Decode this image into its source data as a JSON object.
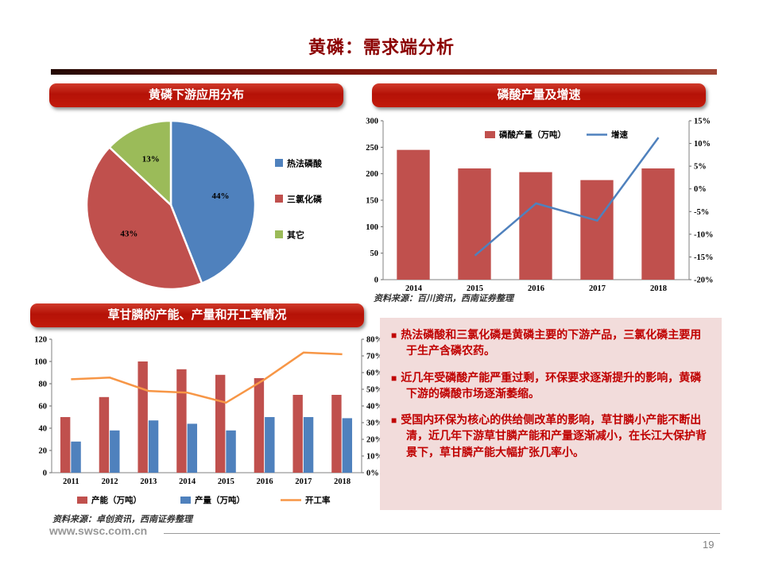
{
  "page": {
    "title": "黄磷：需求端分析",
    "footer_url": "www.swsc.com.cn",
    "page_number": "19"
  },
  "panels": {
    "pie": {
      "header": "黄磷下游应用分布"
    },
    "acid": {
      "header": "磷酸产量及增速",
      "source": "资料来源：百川资讯，西南证券整理"
    },
    "glyphosate": {
      "header": "草甘膦的产能、产量和开工率情况",
      "source": "资料来源：卓创资讯，西南证券整理"
    },
    "notes": {
      "bullet": "■",
      "items": [
        "热法磷酸和三氯化磷是黄磷主要的下游产品，三氯化磷主要用于生产含磷农药。",
        "近几年受磷酸产能严重过剩，环保要求逐渐提升的影响，黄磷下游的磷酸市场逐渐萎缩。",
        "受国内环保为核心的供给侧改革的影响，草甘膦小产能不断出清，近几年下游草甘膦产能和产量逐渐减小，在长江大保护背景下，草甘膦产能大幅扩张几率小。"
      ]
    }
  },
  "chart_data": [
    {
      "id": "pie-downstream",
      "type": "pie",
      "title": "黄磷下游应用分布",
      "labels": [
        "热法磷酸",
        "三氯化磷",
        "其它"
      ],
      "values": [
        44,
        43,
        13
      ],
      "colors": [
        "#4F81BD",
        "#C0504D",
        "#9BBB59"
      ],
      "legend_position": "right"
    },
    {
      "id": "acid-output",
      "type": "bar+line",
      "title": "磷酸产量及增速",
      "categories": [
        "2014",
        "2015",
        "2016",
        "2017",
        "2018"
      ],
      "series": [
        {
          "name": "磷酸产量（万吨）",
          "type": "bar",
          "axis": "left",
          "color": "#C0504D",
          "values": [
            245,
            210,
            203,
            188,
            210
          ]
        },
        {
          "name": "增速",
          "type": "line",
          "axis": "right",
          "color": "#4F81BD",
          "values": [
            null,
            -14.7,
            -3.2,
            -7.0,
            11.3
          ]
        }
      ],
      "left_axis": {
        "min": 0,
        "max": 300,
        "step": 50,
        "format": "num"
      },
      "right_axis": {
        "min": -20,
        "max": 15,
        "step": 5,
        "format": "pct"
      },
      "legend_position": "top"
    },
    {
      "id": "glyphosate",
      "type": "bar+line",
      "title": "草甘膦的产能、产量和开工率情况",
      "categories": [
        "2011",
        "2012",
        "2013",
        "2014",
        "2015",
        "2016",
        "2017",
        "2018"
      ],
      "series": [
        {
          "name": "产能（万吨）",
          "type": "bar",
          "axis": "left",
          "color": "#C0504D",
          "values": [
            50,
            68,
            100,
            93,
            88,
            85,
            70,
            70
          ]
        },
        {
          "name": "产量（万吨）",
          "type": "bar",
          "axis": "left",
          "color": "#4F81BD",
          "values": [
            28,
            38,
            47,
            44,
            38,
            50,
            50,
            49
          ]
        },
        {
          "name": "开工率",
          "type": "line",
          "axis": "right",
          "color": "#F79646",
          "values": [
            56,
            57,
            49,
            48,
            42,
            56,
            72,
            71
          ]
        }
      ],
      "left_axis": {
        "min": 0,
        "max": 120,
        "step": 20,
        "format": "num"
      },
      "right_axis": {
        "min": 0,
        "max": 80,
        "step": 10,
        "format": "pct"
      },
      "legend_position": "bottom"
    }
  ]
}
